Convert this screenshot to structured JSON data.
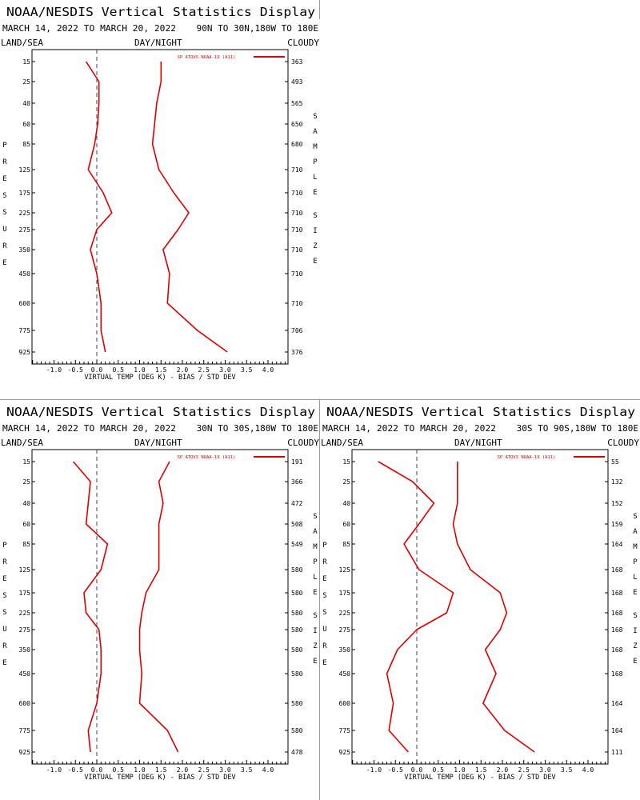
{
  "panels": [
    {
      "title": "NOAA/NESDIS Vertical Statistics Display",
      "date_range": "MARCH 14, 2022 TO MARCH 20, 2022",
      "region": "90N TO 30N,180W TO 180E",
      "land_sea": "LAND/SEA",
      "day_night": "DAY/NIGHT",
      "cloudy": "CLOUDY",
      "left_axis_label": "PRESSURE",
      "right_axis_label": "SAMPLE SIZE",
      "xlabel": "VIRTUAL TEMP (DEG K) - BIAS / STD DEV",
      "legend": "SP ATOVS NOAA-19 (A11)",
      "x_ticks": [
        "-1.0",
        "-0.5",
        "0.0",
        "0.5",
        "1.0",
        "1.5",
        "2.0",
        "2.5",
        "3.0",
        "3.5",
        "4.0"
      ],
      "pressure_levels": [
        "15",
        "25",
        "40",
        "60",
        "85",
        "125",
        "175",
        "225",
        "275",
        "350",
        "450",
        "600",
        "775",
        "925"
      ],
      "sample_sizes": [
        "363",
        "493",
        "565",
        "650",
        "680",
        "710",
        "710",
        "710",
        "710",
        "710",
        "710",
        "710",
        "706",
        "376"
      ]
    },
    {
      "title": "NOAA/NESDIS Vertical Statistics Display",
      "date_range": "MARCH 14, 2022 TO MARCH 20, 2022",
      "region": "30N TO 30S,180W TO 180E",
      "land_sea": "LAND/SEA",
      "day_night": "DAY/NIGHT",
      "cloudy": "CLOUDY",
      "left_axis_label": "PRESSURE",
      "right_axis_label": "SAMPLE SIZE",
      "xlabel": "VIRTUAL TEMP (DEG K) - BIAS / STD DEV",
      "legend": "SP ATOVS NOAA-19 (A11)",
      "x_ticks": [
        "-1.0",
        "-0.5",
        "0.0",
        "0.5",
        "1.0",
        "1.5",
        "2.0",
        "2.5",
        "3.0",
        "3.5",
        "4.0"
      ],
      "pressure_levels": [
        "15",
        "25",
        "40",
        "60",
        "85",
        "125",
        "175",
        "225",
        "275",
        "350",
        "450",
        "600",
        "775",
        "925"
      ],
      "sample_sizes": [
        "191",
        "366",
        "472",
        "508",
        "549",
        "580",
        "580",
        "580",
        "580",
        "580",
        "580",
        "580",
        "580",
        "478"
      ]
    },
    {
      "title": "NOAA/NESDIS Vertical Statistics Display",
      "date_range": "MARCH 14, 2022 TO MARCH 20, 2022",
      "region": "30S TO 90S,180W TO 180E",
      "land_sea": "LAND/SEA",
      "day_night": "DAY/NIGHT",
      "cloudy": "CLOUDY",
      "left_axis_label": "PRESSURE",
      "right_axis_label": "SAMPLE SIZE",
      "xlabel": "VIRTUAL TEMP (DEG K) - BIAS / STD DEV",
      "legend": "SP ATOVS NOAA-19 (A11)",
      "x_ticks": [
        "-1.0",
        "-0.5",
        "0.0",
        "0.5",
        "1.0",
        "1.5",
        "2.0",
        "2.5",
        "3.0",
        "3.5",
        "4.0"
      ],
      "pressure_levels": [
        "15",
        "25",
        "40",
        "60",
        "85",
        "125",
        "175",
        "225",
        "275",
        "350",
        "450",
        "600",
        "775",
        "925"
      ],
      "sample_sizes": [
        "55",
        "132",
        "152",
        "159",
        "164",
        "168",
        "168",
        "168",
        "168",
        "168",
        "168",
        "164",
        "164",
        "111"
      ]
    }
  ],
  "colors": {
    "series": "#dd0000",
    "zero_line": "#404060",
    "frame": "#000000"
  },
  "chart_data": [
    {
      "type": "line",
      "xlabel": "VIRTUAL TEMP (DEG K) - BIAS / STD DEV",
      "ylabel": "PRESSURE",
      "xlim": [
        -1.5,
        4.5
      ],
      "x_ticks": [
        -1.0,
        -0.5,
        0.0,
        0.5,
        1.0,
        1.5,
        2.0,
        2.5,
        3.0,
        3.5,
        4.0
      ],
      "pressure_levels": [
        15,
        25,
        40,
        60,
        85,
        125,
        175,
        225,
        275,
        350,
        450,
        600,
        775,
        925
      ],
      "sample_size": [
        363,
        493,
        565,
        650,
        680,
        710,
        710,
        710,
        710,
        710,
        710,
        710,
        706,
        376
      ],
      "series": [
        {
          "name": "bias",
          "values": [
            -0.25,
            0.05,
            0.05,
            0.02,
            -0.05,
            -0.2,
            0.15,
            0.35,
            0.0,
            -0.15,
            0.0,
            0.1,
            0.1,
            0.2
          ]
        },
        {
          "name": "std_dev",
          "values": [
            1.5,
            1.5,
            1.4,
            1.35,
            1.3,
            1.45,
            1.8,
            2.15,
            1.9,
            1.55,
            1.7,
            1.65,
            2.35,
            3.05
          ]
        }
      ]
    },
    {
      "type": "line",
      "xlabel": "VIRTUAL TEMP (DEG K) - BIAS / STD DEV",
      "ylabel": "PRESSURE",
      "xlim": [
        -1.5,
        4.5
      ],
      "x_ticks": [
        -1.0,
        -0.5,
        0.0,
        0.5,
        1.0,
        1.5,
        2.0,
        2.5,
        3.0,
        3.5,
        4.0
      ],
      "pressure_levels": [
        15,
        25,
        40,
        60,
        85,
        125,
        175,
        225,
        275,
        350,
        450,
        600,
        775,
        925
      ],
      "sample_size": [
        191,
        366,
        472,
        508,
        549,
        580,
        580,
        580,
        580,
        580,
        580,
        580,
        580,
        478
      ],
      "series": [
        {
          "name": "bias",
          "values": [
            -0.55,
            -0.15,
            -0.2,
            -0.25,
            0.25,
            0.1,
            -0.3,
            -0.25,
            0.05,
            0.1,
            0.1,
            0.0,
            -0.2,
            -0.15
          ]
        },
        {
          "name": "std_dev",
          "values": [
            1.7,
            1.45,
            1.55,
            1.45,
            1.45,
            1.45,
            1.15,
            1.05,
            1.0,
            1.0,
            1.05,
            1.0,
            1.65,
            1.9
          ]
        }
      ]
    },
    {
      "type": "line",
      "xlabel": "VIRTUAL TEMP (DEG K) - BIAS / STD DEV",
      "ylabel": "PRESSURE",
      "xlim": [
        -1.5,
        4.5
      ],
      "x_ticks": [
        -1.0,
        -0.5,
        0.0,
        0.5,
        1.0,
        1.5,
        2.0,
        2.5,
        3.0,
        3.5,
        4.0
      ],
      "pressure_levels": [
        15,
        25,
        40,
        60,
        85,
        125,
        175,
        225,
        275,
        350,
        450,
        600,
        775,
        925
      ],
      "sample_size": [
        55,
        132,
        152,
        159,
        164,
        168,
        168,
        168,
        168,
        168,
        168,
        164,
        164,
        111
      ],
      "series": [
        {
          "name": "bias",
          "values": [
            -0.9,
            -0.1,
            0.4,
            0.05,
            -0.3,
            0.05,
            0.85,
            0.7,
            0.0,
            -0.45,
            -0.7,
            -0.55,
            -0.65,
            -0.2
          ]
        },
        {
          "name": "std_dev",
          "values": [
            0.95,
            0.95,
            0.95,
            0.85,
            0.95,
            1.25,
            1.95,
            2.1,
            1.95,
            1.6,
            1.85,
            1.55,
            2.05,
            2.75
          ]
        }
      ]
    }
  ]
}
